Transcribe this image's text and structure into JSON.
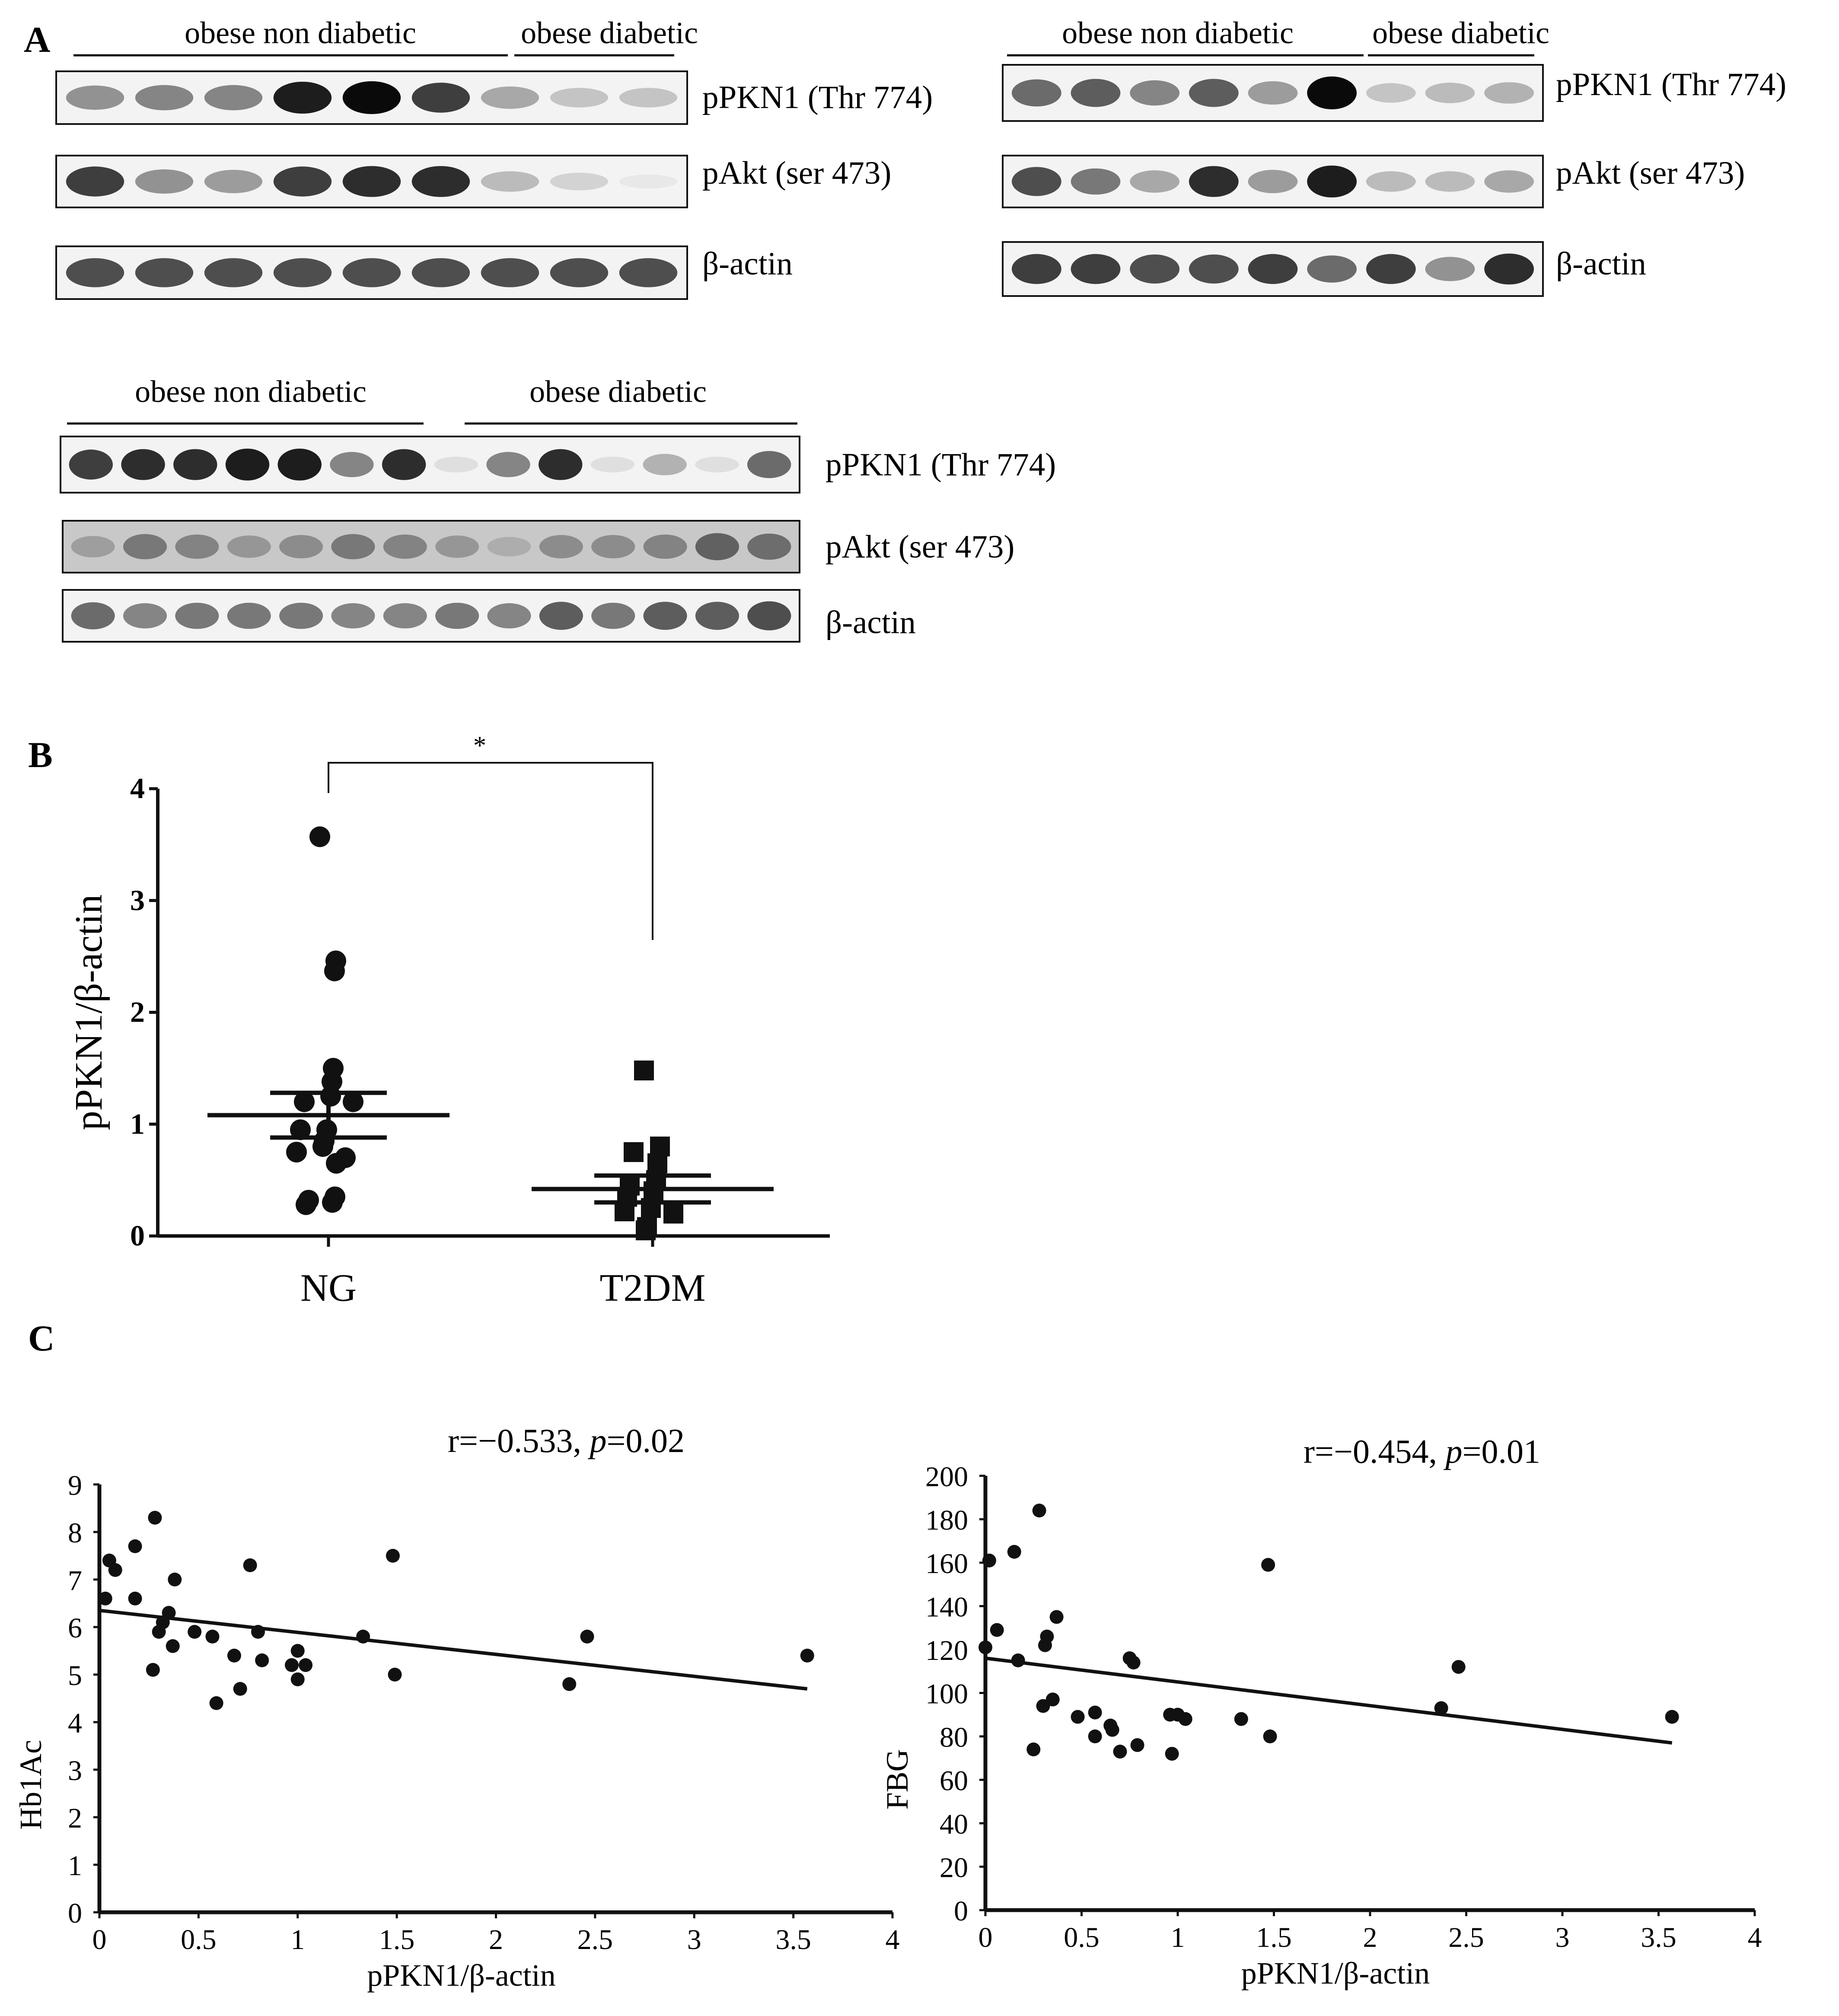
{
  "panel_a": {
    "label": "A",
    "blots": [
      {
        "groups": [
          {
            "label": "obese non diabetic",
            "lanes": 6
          },
          {
            "label": "obese diabetic",
            "lanes": 3
          }
        ],
        "rows": [
          {
            "label": "pPKN1 (Thr 774)",
            "intensity": [
              0.55,
              0.6,
              0.6,
              0.95,
              1.0,
              0.85,
              0.45,
              0.3,
              0.3
            ]
          },
          {
            "label": "pAkt (ser 473)",
            "intensity": [
              0.85,
              0.55,
              0.5,
              0.85,
              0.9,
              0.9,
              0.35,
              0.2,
              0.0
            ]
          },
          {
            "label": "β-actin",
            "intensity": [
              0.8,
              0.8,
              0.8,
              0.8,
              0.8,
              0.8,
              0.8,
              0.8,
              0.8
            ]
          }
        ]
      },
      {
        "groups": [
          {
            "label": "obese non diabetic",
            "lanes": 6
          },
          {
            "label": "obese diabetic",
            "lanes": 3
          }
        ],
        "rows": [
          {
            "label": "pPKN1 (Thr 774)",
            "intensity": [
              0.7,
              0.75,
              0.6,
              0.75,
              0.5,
              1.0,
              0.3,
              0.35,
              0.4
            ]
          },
          {
            "label": "pAkt (ser 473)",
            "intensity": [
              0.8,
              0.65,
              0.45,
              0.9,
              0.5,
              0.95,
              0.35,
              0.35,
              0.45
            ]
          },
          {
            "label": "β-actin",
            "intensity": [
              0.85,
              0.85,
              0.8,
              0.8,
              0.85,
              0.7,
              0.85,
              0.55,
              0.9
            ]
          }
        ]
      },
      {
        "groups": [
          {
            "label": "obese non diabetic",
            "lanes": 7
          },
          {
            "label": "obese diabetic",
            "lanes": 7
          }
        ],
        "rows": [
          {
            "label": "pPKN1 (Thr 774)",
            "intensity": [
              0.85,
              0.9,
              0.9,
              0.95,
              0.95,
              0.6,
              0.9,
              0.1,
              0.6,
              0.9,
              0.1,
              0.4,
              0.1,
              0.7
            ]
          },
          {
            "label": "pAkt (ser 473)",
            "intensity": [
              0.4,
              0.6,
              0.55,
              0.45,
              0.5,
              0.6,
              0.55,
              0.45,
              0.3,
              0.5,
              0.5,
              0.55,
              0.7,
              0.65
            ]
          },
          {
            "label": "β-actin",
            "intensity": [
              0.7,
              0.6,
              0.65,
              0.65,
              0.65,
              0.6,
              0.6,
              0.65,
              0.6,
              0.75,
              0.65,
              0.75,
              0.75,
              0.8
            ]
          }
        ]
      }
    ]
  },
  "panel_b": {
    "label": "B"
  },
  "panel_c": {
    "label": "C"
  },
  "chart_data": [
    {
      "type": "scatter",
      "title": "",
      "xlabel": "",
      "ylabel": "pPKN1/β-actin",
      "categories": [
        "NG",
        "T2DM"
      ],
      "ylim": [
        0,
        4
      ],
      "yticks": [
        "0",
        "1",
        "2",
        "3",
        "4"
      ],
      "significance": "*",
      "series": [
        {
          "name": "NG",
          "marker": "circle",
          "values": [
            3.57,
            2.46,
            2.37,
            1.5,
            1.38,
            1.25,
            1.2,
            1.2,
            0.95,
            0.95,
            0.85,
            0.8,
            0.75,
            0.7,
            0.65,
            0.35,
            0.32,
            0.3,
            0.28
          ],
          "mean": 1.08,
          "sem_upper": 1.28,
          "sem_lower": 0.88
        },
        {
          "name": "T2DM",
          "marker": "square",
          "values": [
            1.48,
            0.8,
            0.75,
            0.65,
            0.5,
            0.45,
            0.4,
            0.35,
            0.25,
            0.22,
            0.2,
            0.08,
            0.05
          ],
          "mean": 0.42,
          "sem_upper": 0.54,
          "sem_lower": 0.3
        }
      ]
    },
    {
      "type": "scatter",
      "title": "",
      "annotation": {
        "r_text": "r=−0.533, ",
        "p_label": "p",
        "p_text": "=0.02"
      },
      "xlabel": "pPKN1/β-actin",
      "ylabel": "Hb1Ac",
      "xlim": [
        0,
        4
      ],
      "ylim": [
        0,
        9
      ],
      "xticks": [
        "0",
        "0.5",
        "1",
        "1.5",
        "2",
        "2.5",
        "3",
        "3.5",
        "4"
      ],
      "yticks": [
        "0",
        "1",
        "2",
        "3",
        "4",
        "5",
        "6",
        "7",
        "8",
        "9"
      ],
      "points": [
        {
          "x": 0.03,
          "y": 6.6
        },
        {
          "x": 0.05,
          "y": 7.4
        },
        {
          "x": 0.08,
          "y": 7.2
        },
        {
          "x": 0.18,
          "y": 7.7
        },
        {
          "x": 0.18,
          "y": 6.6
        },
        {
          "x": 0.27,
          "y": 5.1
        },
        {
          "x": 0.28,
          "y": 8.3
        },
        {
          "x": 0.3,
          "y": 5.9
        },
        {
          "x": 0.32,
          "y": 6.1
        },
        {
          "x": 0.35,
          "y": 6.3
        },
        {
          "x": 0.37,
          "y": 5.6
        },
        {
          "x": 0.38,
          "y": 7.0
        },
        {
          "x": 0.48,
          "y": 5.9
        },
        {
          "x": 0.57,
          "y": 5.8
        },
        {
          "x": 0.59,
          "y": 4.4
        },
        {
          "x": 0.68,
          "y": 5.4
        },
        {
          "x": 0.71,
          "y": 4.7
        },
        {
          "x": 0.76,
          "y": 7.3
        },
        {
          "x": 0.8,
          "y": 5.9
        },
        {
          "x": 0.82,
          "y": 5.3
        },
        {
          "x": 0.97,
          "y": 5.2
        },
        {
          "x": 1.0,
          "y": 5.5
        },
        {
          "x": 1.0,
          "y": 4.9
        },
        {
          "x": 1.04,
          "y": 5.2
        },
        {
          "x": 1.33,
          "y": 5.8
        },
        {
          "x": 1.48,
          "y": 7.5
        },
        {
          "x": 1.49,
          "y": 5.0
        },
        {
          "x": 2.37,
          "y": 4.8
        },
        {
          "x": 2.46,
          "y": 5.8
        },
        {
          "x": 3.57,
          "y": 5.4
        }
      ],
      "trendline": {
        "x": [
          0,
          3.57
        ],
        "y": [
          6.35,
          4.7
        ]
      }
    },
    {
      "type": "scatter",
      "title": "",
      "annotation": {
        "r_text": "r=−0.454, ",
        "p_label": "p",
        "p_text": "=0.01"
      },
      "xlabel": "pPKN1/β-actin",
      "ylabel": "FBG",
      "xlim": [
        0,
        4
      ],
      "ylim": [
        0,
        200
      ],
      "xticks": [
        "0",
        "0.5",
        "1",
        "1.5",
        "2",
        "2.5",
        "3",
        "3.5",
        "4"
      ],
      "yticks": [
        "0",
        "20",
        "40",
        "60",
        "80",
        "100",
        "120",
        "140",
        "160",
        "180",
        "200"
      ],
      "points": [
        {
          "x": 0.0,
          "y": 121
        },
        {
          "x": 0.02,
          "y": 161
        },
        {
          "x": 0.06,
          "y": 129
        },
        {
          "x": 0.15,
          "y": 165
        },
        {
          "x": 0.17,
          "y": 115
        },
        {
          "x": 0.25,
          "y": 74
        },
        {
          "x": 0.28,
          "y": 184
        },
        {
          "x": 0.3,
          "y": 94
        },
        {
          "x": 0.31,
          "y": 122
        },
        {
          "x": 0.32,
          "y": 126
        },
        {
          "x": 0.35,
          "y": 97
        },
        {
          "x": 0.37,
          "y": 135
        },
        {
          "x": 0.48,
          "y": 89
        },
        {
          "x": 0.57,
          "y": 91
        },
        {
          "x": 0.57,
          "y": 80
        },
        {
          "x": 0.65,
          "y": 85
        },
        {
          "x": 0.66,
          "y": 83
        },
        {
          "x": 0.7,
          "y": 73
        },
        {
          "x": 0.75,
          "y": 116
        },
        {
          "x": 0.77,
          "y": 114
        },
        {
          "x": 0.79,
          "y": 76
        },
        {
          "x": 0.96,
          "y": 90
        },
        {
          "x": 0.97,
          "y": 72
        },
        {
          "x": 1.0,
          "y": 90
        },
        {
          "x": 1.04,
          "y": 88
        },
        {
          "x": 1.33,
          "y": 88
        },
        {
          "x": 1.47,
          "y": 159
        },
        {
          "x": 1.48,
          "y": 80
        },
        {
          "x": 2.37,
          "y": 93
        },
        {
          "x": 2.46,
          "y": 112
        },
        {
          "x": 3.57,
          "y": 89
        }
      ],
      "trendline": {
        "x": [
          0,
          3.57
        ],
        "y": [
          116,
          77
        ]
      }
    }
  ]
}
